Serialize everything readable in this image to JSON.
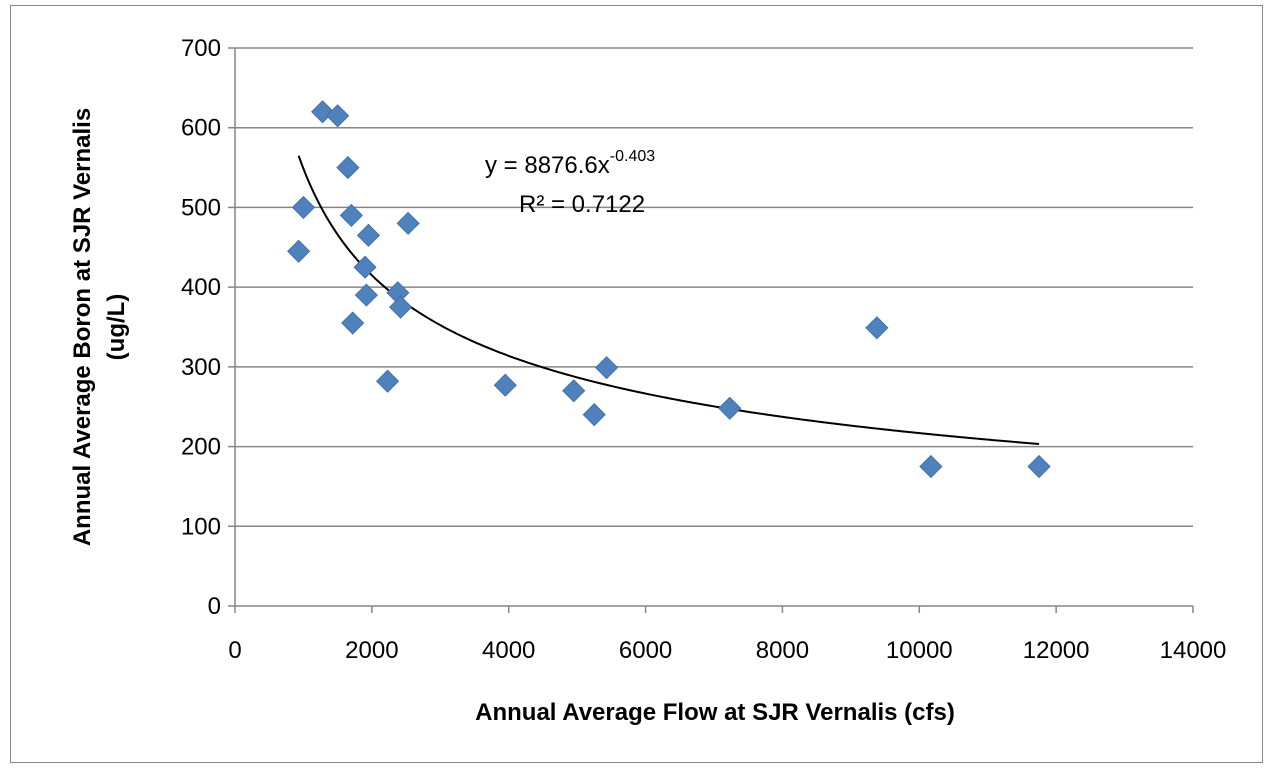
{
  "chart_data": {
    "type": "scatter",
    "title": "",
    "xlabel": "Annual Average Flow at SJR Vernalis (cfs)",
    "ylabel_line1": "Annual Average  Boron at SJR Vernalis",
    "ylabel_line2": "(ug/L)",
    "xlim": [
      0,
      14000
    ],
    "ylim": [
      0,
      700
    ],
    "x_ticks": [
      "0",
      "2000",
      "4000",
      "6000",
      "8000",
      "10000",
      "12000",
      "14000"
    ],
    "y_ticks": [
      "0",
      "100",
      "200",
      "300",
      "400",
      "500",
      "600",
      "700"
    ],
    "grid": "horizontal",
    "marker_color": "#4f81bd",
    "marker": "diamond",
    "points": [
      {
        "x": 930,
        "y": 445
      },
      {
        "x": 1000,
        "y": 500
      },
      {
        "x": 1280,
        "y": 620
      },
      {
        "x": 1500,
        "y": 615
      },
      {
        "x": 1650,
        "y": 550
      },
      {
        "x": 1700,
        "y": 490
      },
      {
        "x": 1720,
        "y": 355
      },
      {
        "x": 1900,
        "y": 425
      },
      {
        "x": 1920,
        "y": 390
      },
      {
        "x": 1950,
        "y": 465
      },
      {
        "x": 2230,
        "y": 282
      },
      {
        "x": 2380,
        "y": 393
      },
      {
        "x": 2420,
        "y": 375
      },
      {
        "x": 2530,
        "y": 480
      },
      {
        "x": 3950,
        "y": 277
      },
      {
        "x": 4950,
        "y": 270
      },
      {
        "x": 5250,
        "y": 240
      },
      {
        "x": 5430,
        "y": 299
      },
      {
        "x": 7230,
        "y": 248
      },
      {
        "x": 9380,
        "y": 349
      },
      {
        "x": 10170,
        "y": 175
      },
      {
        "x": 11750,
        "y": 175
      }
    ],
    "trendline": {
      "type": "power",
      "coefficient": 8876.6,
      "exponent": -0.403,
      "x_range": [
        930,
        11750
      ],
      "color": "#000000",
      "equation_base": "y = 8876.6x",
      "equation_exponent": "-0.403",
      "r_squared": "R² = 0.7122"
    }
  }
}
